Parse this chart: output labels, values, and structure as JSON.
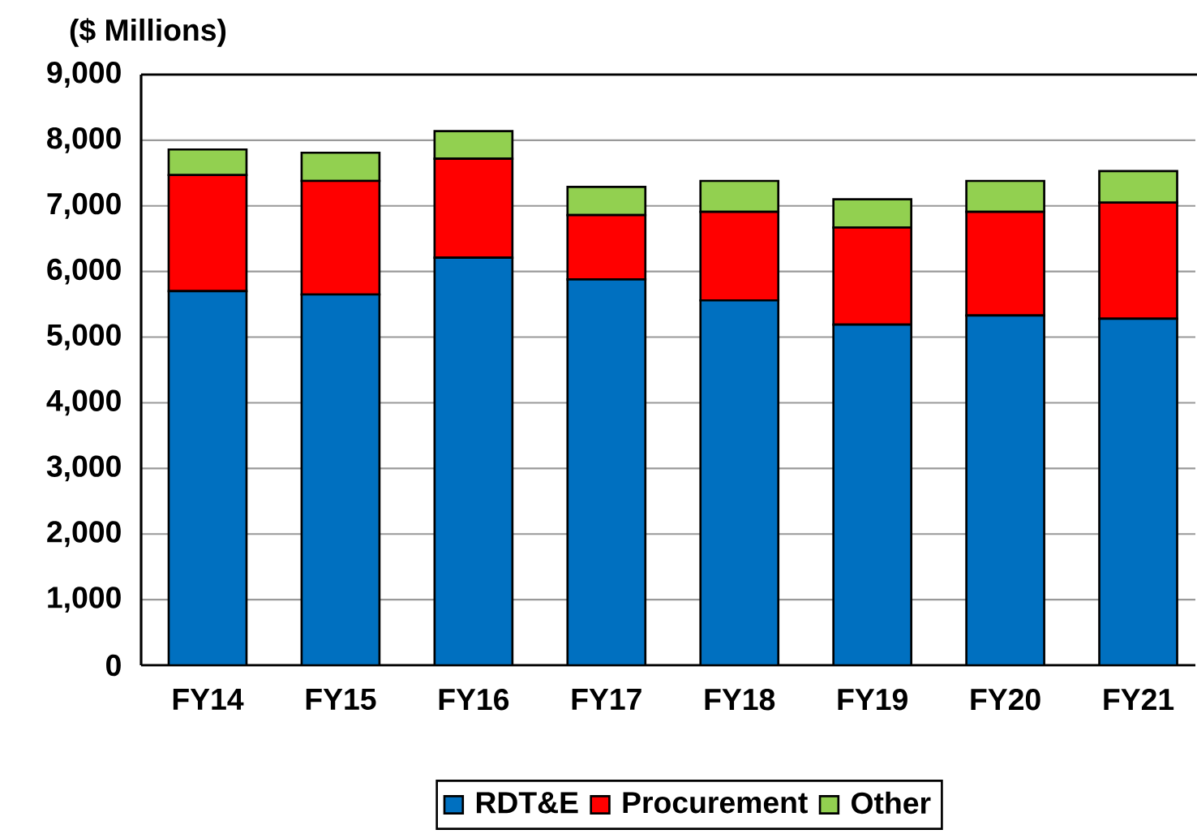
{
  "chart_data": {
    "type": "bar",
    "stacked": true,
    "ylabel": "($ Millions)",
    "categories": [
      "FY14",
      "FY15",
      "FY16",
      "FY17",
      "FY18",
      "FY19",
      "FY20",
      "FY21"
    ],
    "series": [
      {
        "name": "RDT&E",
        "color": "#0070c0",
        "values": [
          5700,
          5650,
          6210,
          5880,
          5560,
          5190,
          5330,
          5280
        ]
      },
      {
        "name": "Procurement",
        "color": "#ff0000",
        "values": [
          1770,
          1730,
          1510,
          980,
          1350,
          1480,
          1580,
          1770
        ]
      },
      {
        "name": "Other",
        "color": "#92d050",
        "values": [
          390,
          430,
          420,
          430,
          470,
          430,
          470,
          480
        ]
      }
    ],
    "ylim": [
      0,
      9000
    ],
    "yticks": [
      {
        "value": 0,
        "label": "0"
      },
      {
        "value": 1000,
        "label": "1,000"
      },
      {
        "value": 2000,
        "label": "2,000"
      },
      {
        "value": 3000,
        "label": "3,000"
      },
      {
        "value": 4000,
        "label": "4,000"
      },
      {
        "value": 5000,
        "label": "5,000"
      },
      {
        "value": 6000,
        "label": "6,000"
      },
      {
        "value": 7000,
        "label": "7,000"
      },
      {
        "value": 8000,
        "label": "8,000"
      },
      {
        "value": 9000,
        "label": "9,000"
      }
    ],
    "grid": "y",
    "legend": "bottom"
  }
}
